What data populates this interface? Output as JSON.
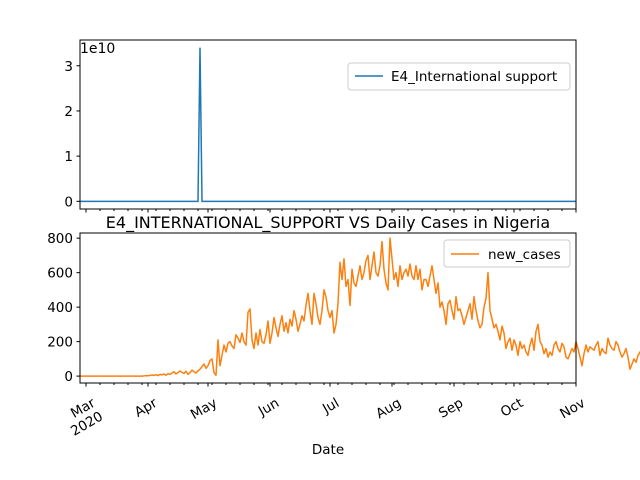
{
  "chart_data": [
    {
      "type": "line",
      "title": "",
      "xlabel": "",
      "ylabel": "",
      "offset_label": "1e10",
      "ylim": [
        -0.17,
        3.57
      ],
      "yticks": [
        0,
        1,
        2,
        3
      ],
      "ytick_labels": [
        "0",
        "1",
        "2",
        "3"
      ],
      "xlim": [
        "2020-02-27",
        "2020-11-01"
      ],
      "grid": false,
      "legend": "upper right",
      "series": [
        {
          "name": "E4_International support",
          "color": "#1f77b4",
          "baseline": 0,
          "spike": {
            "date": "2020-04-27",
            "value": 3.4
          }
        }
      ]
    },
    {
      "type": "line",
      "title": "E4_INTERNATIONAL_SUPPORT VS Daily Cases in Nigeria",
      "xlabel": "Date",
      "ylabel": "",
      "ylim": [
        -40,
        830
      ],
      "yticks": [
        0,
        200,
        400,
        600,
        800
      ],
      "ytick_labels": [
        "0",
        "200",
        "400",
        "600",
        "800"
      ],
      "xlim": [
        "2020-02-27",
        "2020-11-01"
      ],
      "xticks": [
        "2020-03-01",
        "2020-04-01",
        "2020-05-01",
        "2020-06-01",
        "2020-07-01",
        "2020-08-01",
        "2020-09-01",
        "2020-10-01",
        "2020-11-01"
      ],
      "xtick_labels": [
        "Mar\n2020",
        "Apr",
        "May",
        "Jun",
        "Jul",
        "Aug",
        "Sep",
        "Oct",
        "Nov"
      ],
      "grid": false,
      "legend": "upper right",
      "series": [
        {
          "name": "new_cases",
          "color": "#ff7f0e",
          "x_start": "2020-02-27",
          "values": [
            0,
            0,
            0,
            0,
            0,
            0,
            0,
            0,
            0,
            0,
            0,
            0,
            0,
            0,
            0,
            0,
            0,
            0,
            0,
            0,
            0,
            0,
            0,
            0,
            0,
            0,
            0,
            0,
            0,
            0,
            0,
            0,
            1,
            3,
            2,
            4,
            6,
            5,
            8,
            3,
            10,
            7,
            12,
            5,
            14,
            10,
            18,
            25,
            12,
            20,
            30,
            22,
            15,
            28,
            10,
            20,
            35,
            25,
            18,
            30,
            40,
            55,
            70,
            45,
            60,
            90,
            100,
            20,
            5,
            210,
            60,
            120,
            180,
            140,
            190,
            200,
            175,
            160,
            240,
            220,
            195,
            250,
            200,
            180,
            370,
            390,
            210,
            160,
            250,
            180,
            270,
            200,
            190,
            240,
            320,
            190,
            250,
            340,
            280,
            230,
            300,
            350,
            260,
            310,
            250,
            330,
            290,
            380,
            330,
            260,
            300,
            350,
            320,
            410,
            480,
            380,
            300,
            480,
            420,
            340,
            300,
            380,
            500,
            460,
            380,
            340,
            380,
            250,
            300,
            420,
            660,
            560,
            680,
            520,
            560,
            410,
            620,
            540,
            520,
            580,
            640,
            560,
            600,
            670,
            700,
            560,
            640,
            720,
            600,
            580,
            640,
            780,
            620,
            540,
            500,
            800,
            680,
            560,
            600,
            520,
            640,
            560,
            600,
            620,
            580,
            650,
            580,
            560,
            640,
            560,
            620,
            500,
            560,
            560,
            520,
            580,
            640,
            560,
            480,
            540,
            400,
            430,
            380,
            300,
            420,
            440,
            380,
            330,
            460,
            380,
            390,
            350,
            300,
            340,
            380,
            420,
            330,
            460,
            380,
            320,
            280,
            300,
            400,
            450,
            600,
            380,
            330,
            280,
            300,
            260,
            210,
            290,
            250,
            160,
            200,
            220,
            150,
            210,
            180,
            120,
            200,
            160,
            180,
            140,
            120,
            180,
            220,
            150,
            260,
            300,
            200,
            180,
            130,
            160,
            110,
            140,
            120,
            180,
            200,
            160,
            140,
            190,
            170,
            110,
            100,
            130,
            160,
            140,
            200,
            160,
            110,
            60,
            130,
            180,
            140,
            170,
            160,
            150,
            180,
            200,
            120,
            160,
            140,
            130,
            220,
            180,
            160,
            150,
            200,
            180,
            140,
            110,
            130,
            160,
            110,
            40,
            70,
            100,
            80,
            120,
            140,
            150,
            130,
            160,
            170,
            150,
            110
          ]
        }
      ]
    }
  ]
}
